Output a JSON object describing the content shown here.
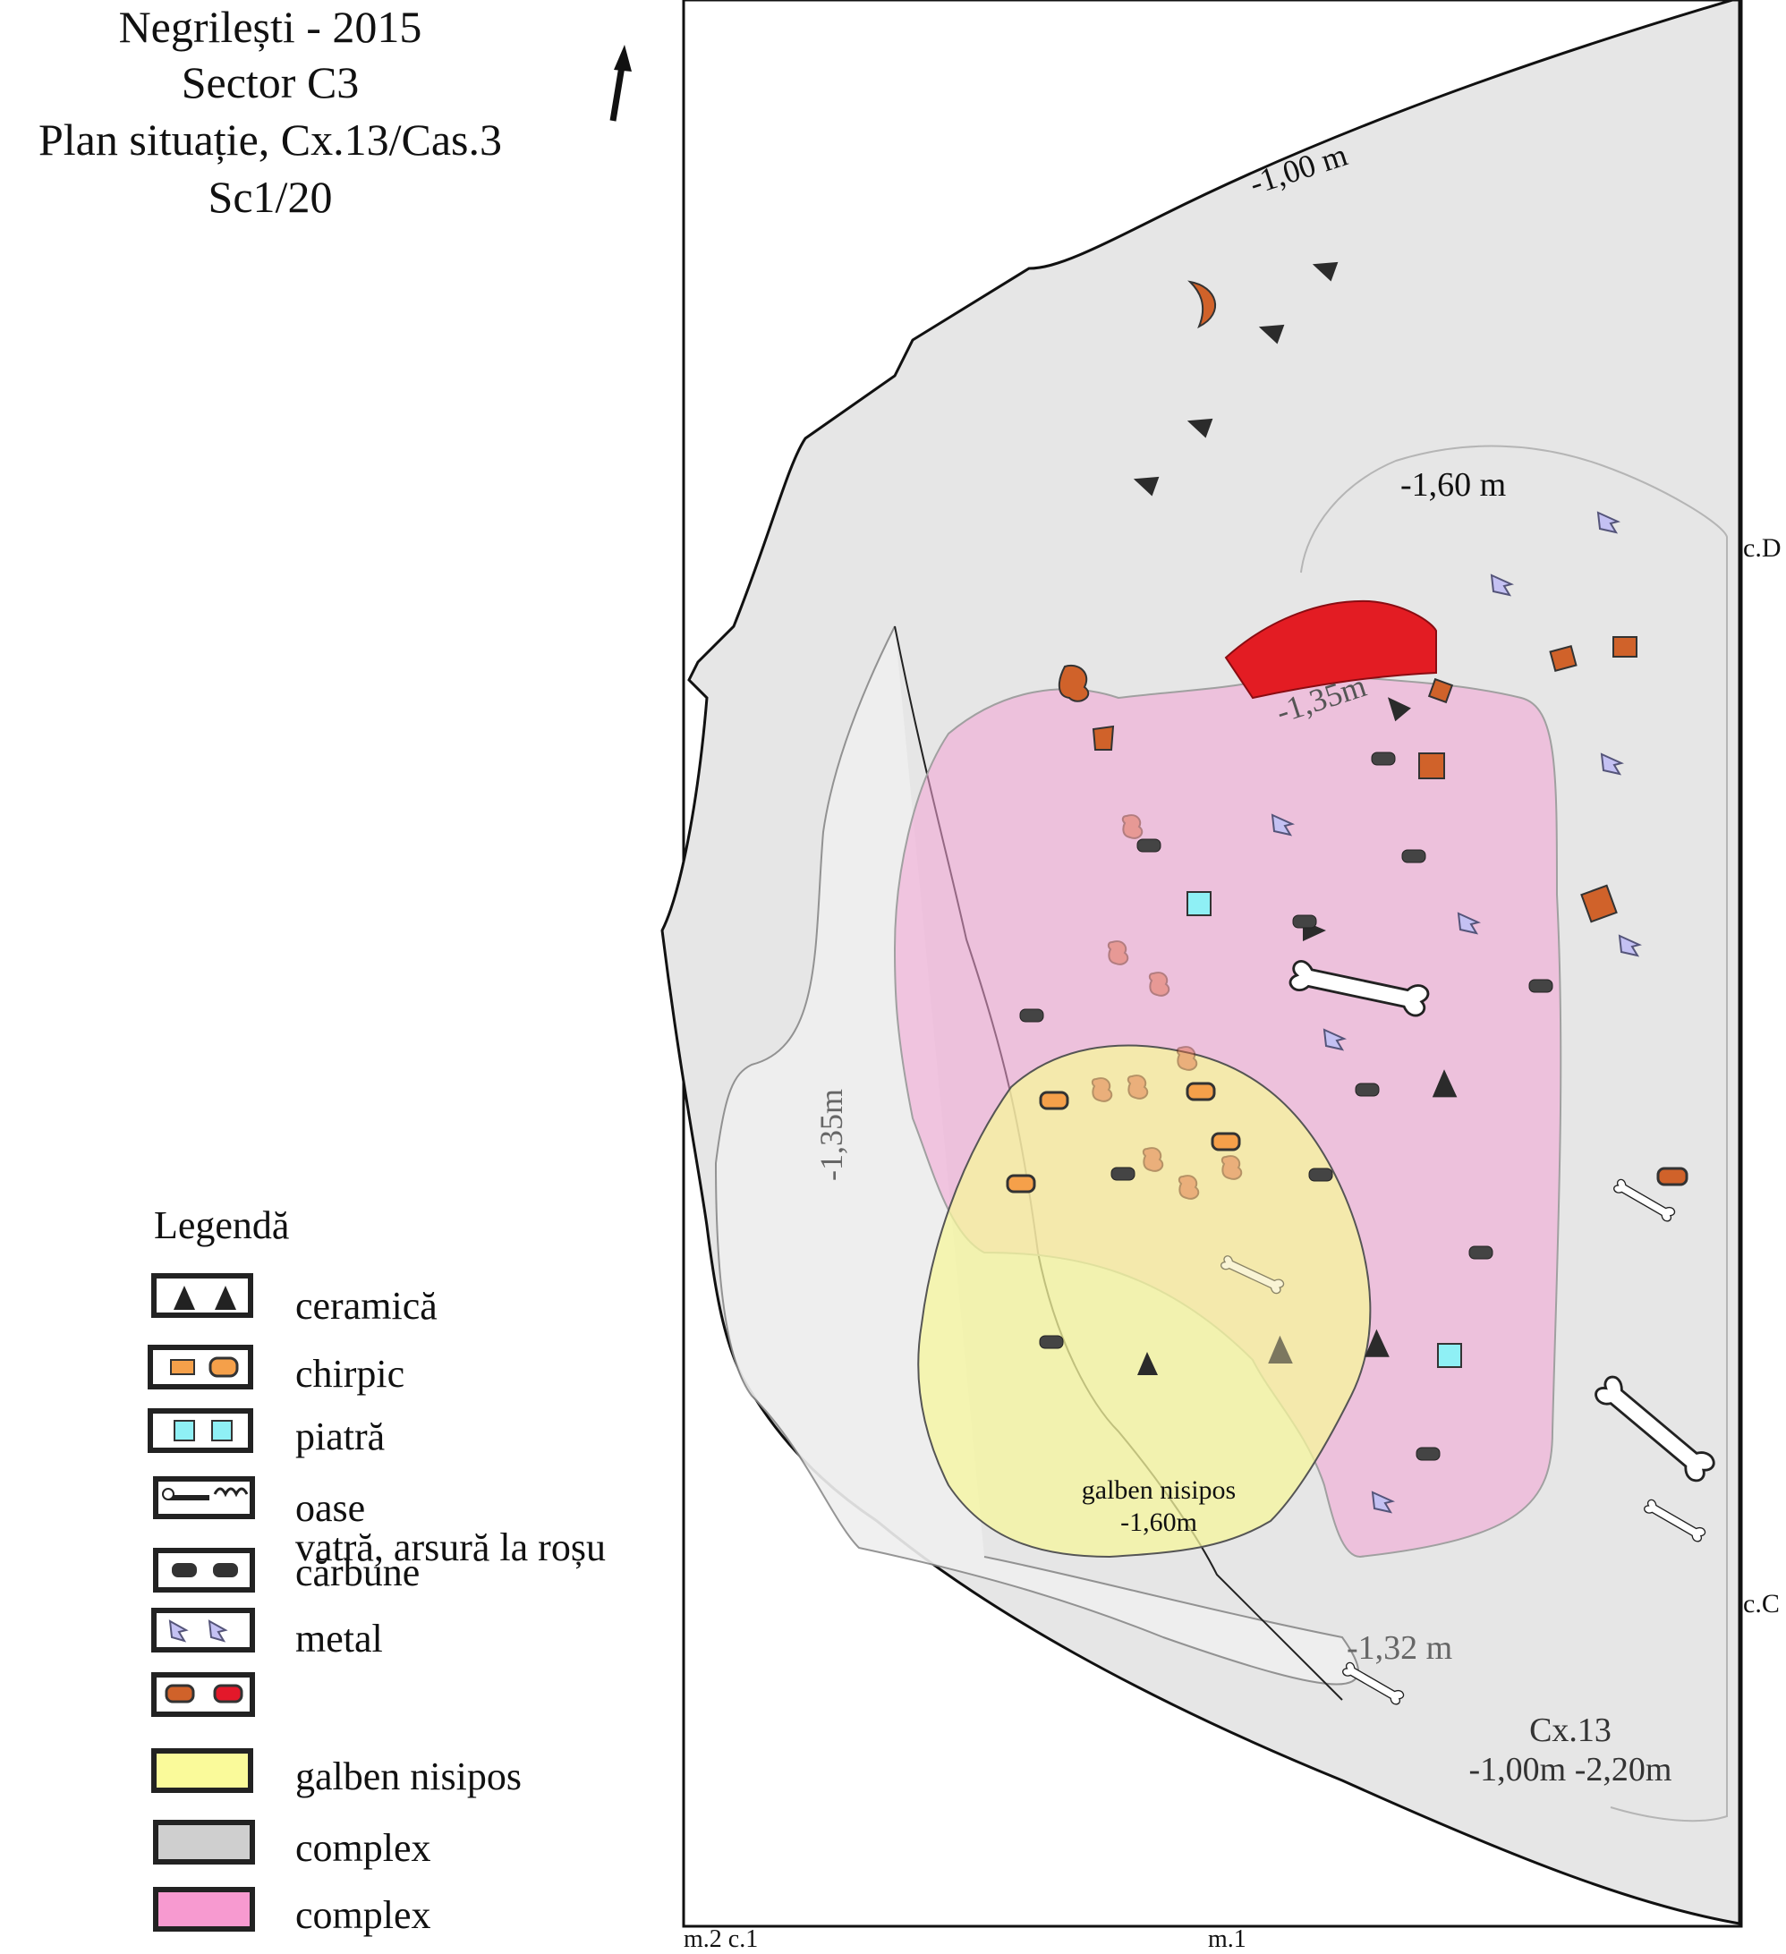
{
  "title": {
    "line1": "Negrilești - 2015",
    "line2": "Sector C3",
    "line3": "Plan situație, Cx.13/Cas.3",
    "line4": "Sc1/20"
  },
  "legend": {
    "title": "Legendă",
    "items": [
      {
        "label": "ceramică",
        "icon": "ceramic-shards"
      },
      {
        "label": "chirpic",
        "icon": "daub-fragments",
        "color": "#f5a04a"
      },
      {
        "label": "piatră",
        "icon": "stones",
        "color": "#8ff0f5"
      },
      {
        "label": "oase",
        "icon": "bones"
      },
      {
        "label": "vatră, arsură la roșu",
        "icon": "hearth-burn"
      },
      {
        "label": "cărbune",
        "icon": "charcoal"
      },
      {
        "label": "metal",
        "icon": "metal-fragments",
        "color": "#b9b6f0"
      },
      {
        "label": "",
        "icon": "burnt-daub-red",
        "colors": [
          "#d0622a",
          "#e3182a"
        ]
      },
      {
        "label": "galben nisipos",
        "icon": "yellow-sandy-swatch",
        "color": "#fafa9a"
      },
      {
        "label": "complex",
        "icon": "grey-swatch",
        "color": "#cfcfcf"
      },
      {
        "label": "complex",
        "icon": "pink-swatch",
        "color": "#f79ad0"
      }
    ]
  },
  "map": {
    "elevations": {
      "top": "-1,00 m",
      "upper_pit": "-1,60 m",
      "pink_edge": "-1,35m",
      "left_pit": "-1,35m",
      "bottom": "-1,32 m"
    },
    "yellow_zone": {
      "name": "galben nisipos",
      "depth": "-1,60m"
    },
    "complex": {
      "name": "Cx.13",
      "depth": "-1,00m -2,20m"
    },
    "grid_labels": {
      "cD": "c.D",
      "cC": "c.C",
      "m2c1": "m.2 c.1",
      "m1": "m.1"
    },
    "north_arrow": "north-arrow-icon",
    "colors": {
      "grey_complex": "#e7e7e7",
      "pink_complex": "#f3a3d3",
      "yellow_zone": "#f6f59c",
      "hearth": "#e31c23",
      "daub": "#d0622a",
      "stone": "#8ff0f5",
      "metal": "#b9b6f0",
      "charcoal": "#3a3a3a"
    }
  }
}
